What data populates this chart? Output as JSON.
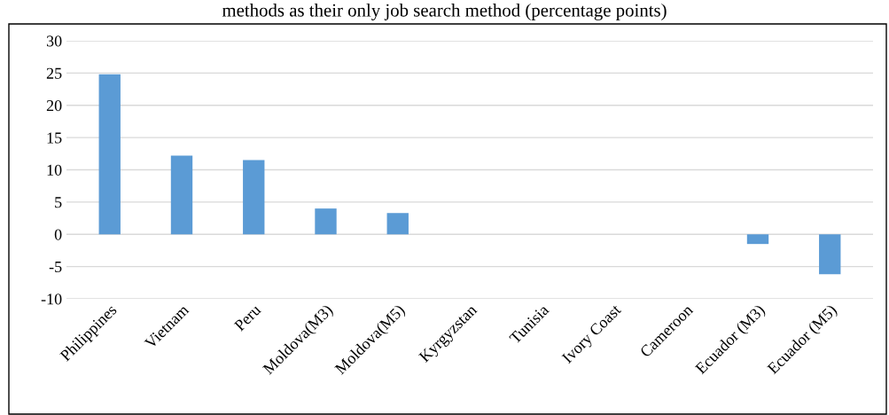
{
  "chart_data": {
    "type": "bar",
    "title": "methods as their only job search method (percentage points)",
    "categories": [
      "Philippines",
      "Vietnam",
      "Peru",
      "Moldova(M3)",
      "Moldova(M5)",
      "Kyrgyzstan",
      "Tunisia",
      "Ivory Coast",
      "Cameroon",
      "Ecuador (M3)",
      "Ecuador (M5)"
    ],
    "values": [
      24.8,
      12.2,
      11.5,
      4.0,
      3.3,
      0,
      0,
      0,
      0,
      -1.5,
      -6.2
    ],
    "color": "#5b9bd5",
    "ylim": [
      -10,
      30
    ],
    "yticks": [
      -10,
      -5,
      0,
      5,
      10,
      15,
      20,
      25,
      30
    ],
    "grid": "y"
  }
}
